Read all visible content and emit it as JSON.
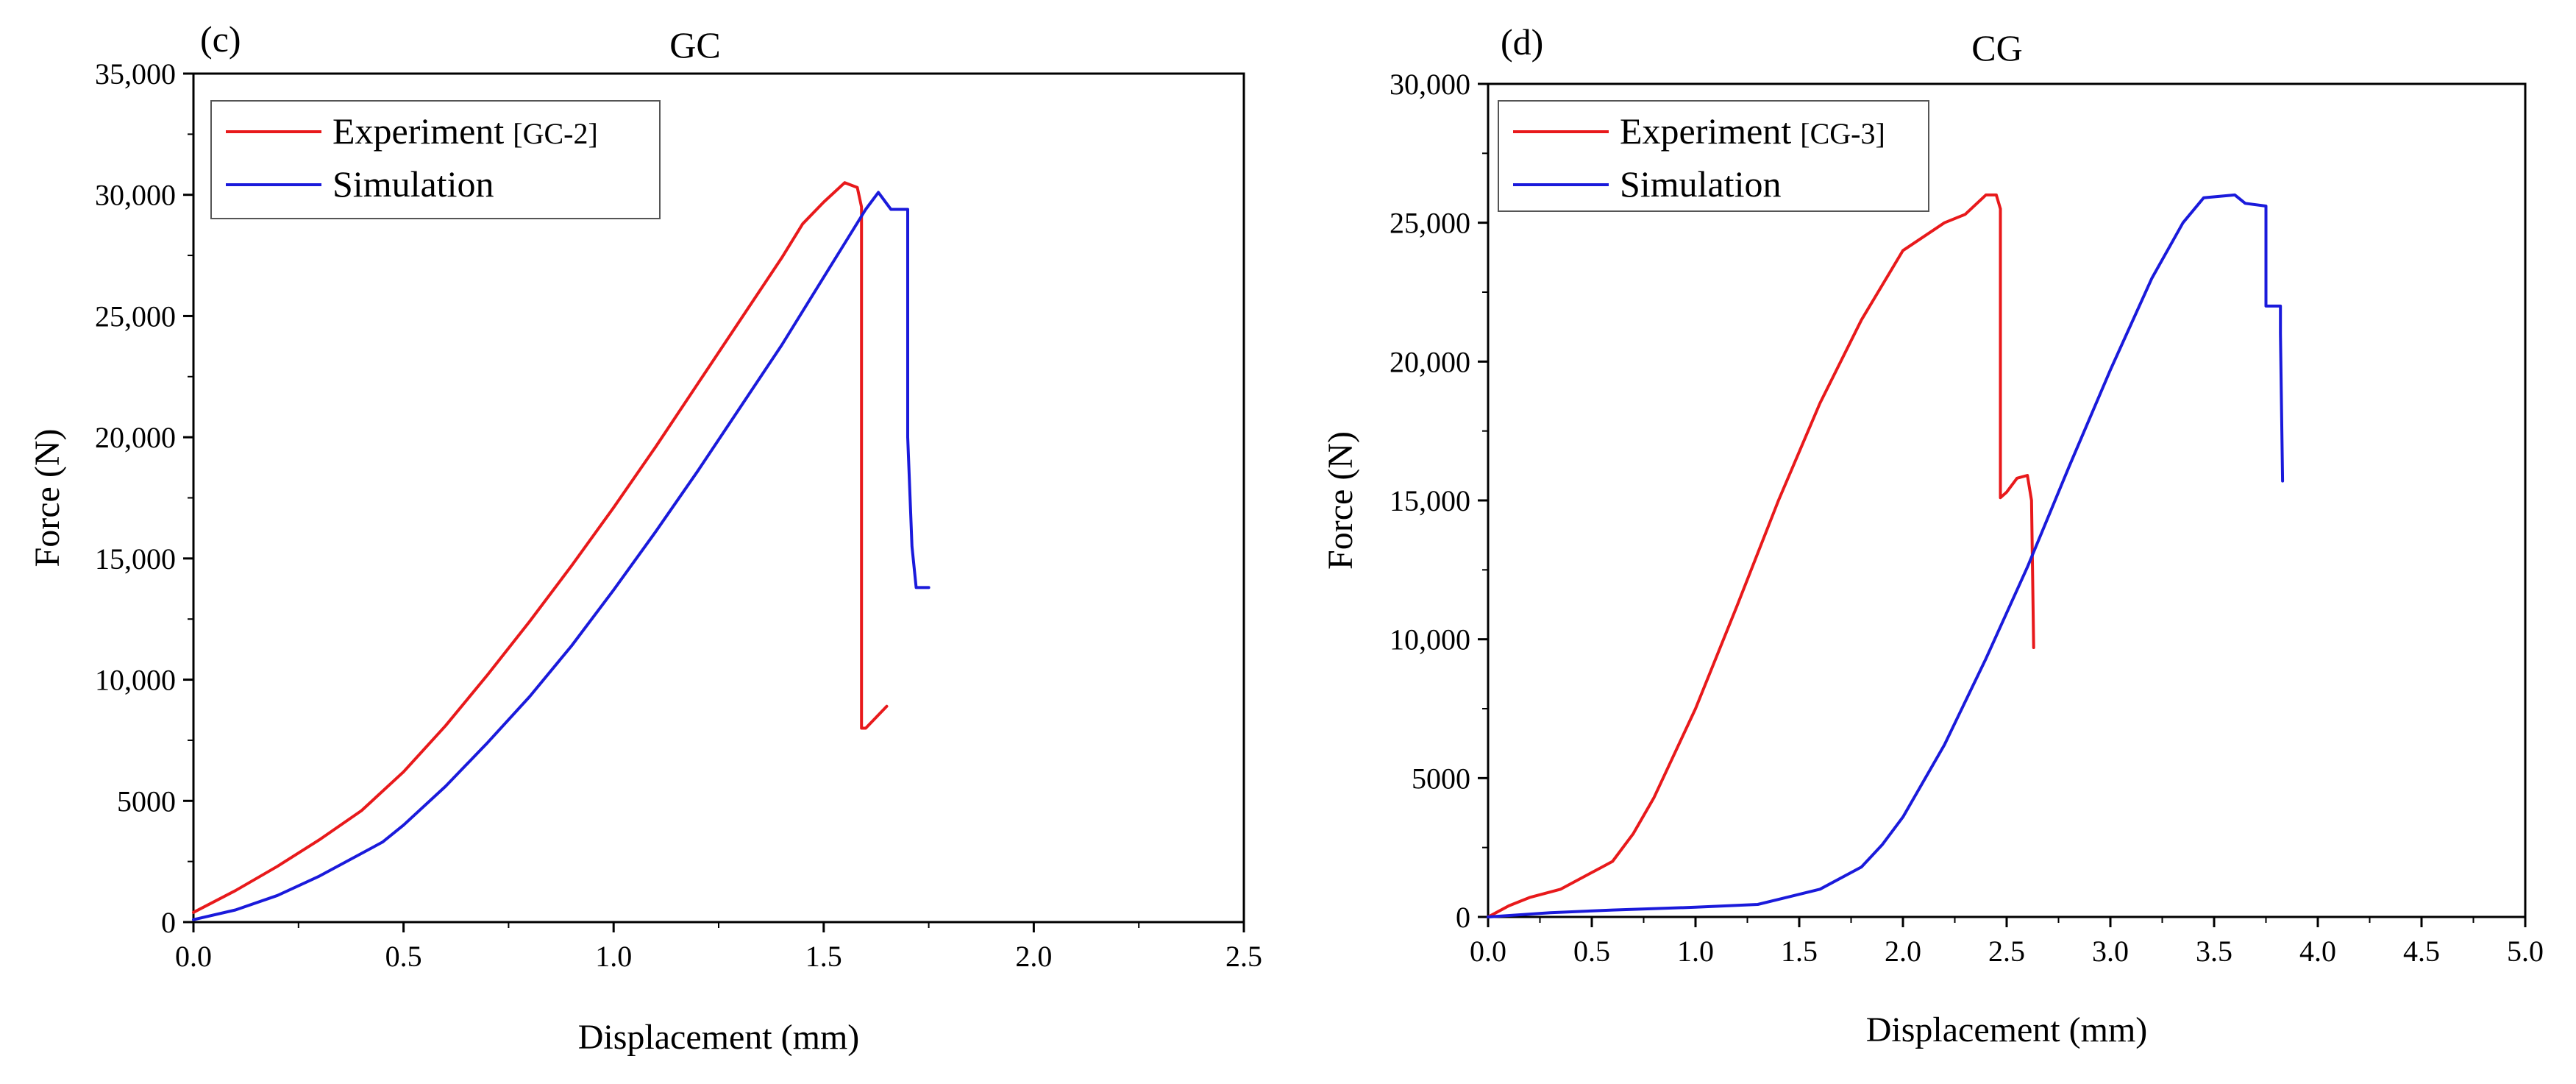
{
  "chart_data": [
    {
      "type": "line",
      "panel_label": "(c)",
      "title": "GC",
      "xlabel": "Displacement (mm)",
      "ylabel": "Force (N)",
      "xlim": [
        0,
        2.5
      ],
      "ylim": [
        0,
        35000
      ],
      "x_ticks": [
        0,
        0.5,
        1.0,
        1.5,
        2.0,
        2.5
      ],
      "x_tick_labels": [
        "0.0",
        "0.5",
        "1.0",
        "1.5",
        "2.0",
        "2.5"
      ],
      "y_ticks": [
        0,
        5000,
        10000,
        15000,
        20000,
        25000,
        30000,
        35000
      ],
      "y_tick_labels": [
        "0",
        "5000",
        "10,000",
        "15,000",
        "20,000",
        "25,000",
        "30,000",
        "35,000"
      ],
      "legend_position": "top-left",
      "series": [
        {
          "name": "Experiment",
          "name_tag": "[GC-2]",
          "color": "#e8191b",
          "x": [
            0.0,
            0.1,
            0.2,
            0.3,
            0.4,
            0.5,
            0.6,
            0.7,
            0.8,
            0.9,
            1.0,
            1.1,
            1.2,
            1.3,
            1.4,
            1.45,
            1.5,
            1.55,
            1.58,
            1.59,
            1.59,
            1.6,
            1.65
          ],
          "y": [
            400,
            1300,
            2300,
            3400,
            4600,
            6200,
            8100,
            10200,
            12400,
            14700,
            17100,
            19600,
            22200,
            24800,
            27400,
            28800,
            29700,
            30500,
            30300,
            29500,
            8000,
            8000,
            8900
          ]
        },
        {
          "name": "Simulation",
          "name_tag": "",
          "color": "#1a1adb",
          "x": [
            0.0,
            0.1,
            0.2,
            0.3,
            0.45,
            0.5,
            0.6,
            0.7,
            0.8,
            0.9,
            1.0,
            1.1,
            1.2,
            1.3,
            1.4,
            1.5,
            1.6,
            1.63,
            1.66,
            1.7,
            1.7,
            1.71,
            1.72,
            1.75
          ],
          "y": [
            100,
            500,
            1100,
            1900,
            3300,
            4000,
            5600,
            7400,
            9300,
            11400,
            13700,
            16100,
            18600,
            21200,
            23800,
            26600,
            29400,
            30100,
            29400,
            29400,
            20000,
            15500,
            13800,
            13800
          ]
        }
      ]
    },
    {
      "type": "line",
      "panel_label": "(d)",
      "title": "CG",
      "xlabel": "Displacement (mm)",
      "ylabel": "Force (N)",
      "xlim": [
        0,
        5.0
      ],
      "ylim": [
        0,
        30000
      ],
      "x_ticks": [
        0,
        0.5,
        1.0,
        1.5,
        2.0,
        2.5,
        3.0,
        3.5,
        4.0,
        4.5,
        5.0
      ],
      "x_tick_labels": [
        "0.0",
        "0.5",
        "1.0",
        "1.5",
        "2.0",
        "2.5",
        "3.0",
        "3.5",
        "4.0",
        "4.5",
        "5.0"
      ],
      "y_ticks": [
        0,
        5000,
        10000,
        15000,
        20000,
        25000,
        30000
      ],
      "y_tick_labels": [
        "0",
        "5000",
        "10,000",
        "15,000",
        "20,000",
        "25,000",
        "30,000"
      ],
      "legend_position": "top-left",
      "series": [
        {
          "name": "Experiment",
          "name_tag": "[CG-3]",
          "color": "#e8191b",
          "x": [
            0.0,
            0.1,
            0.2,
            0.35,
            0.5,
            0.55,
            0.6,
            0.7,
            0.8,
            1.0,
            1.2,
            1.4,
            1.6,
            1.8,
            2.0,
            2.2,
            2.3,
            2.4,
            2.45,
            2.47,
            2.47,
            2.5,
            2.55,
            2.6,
            2.62,
            2.63
          ],
          "y": [
            0,
            400,
            700,
            1000,
            1600,
            1800,
            2000,
            3000,
            4300,
            7500,
            11200,
            15000,
            18500,
            21500,
            24000,
            25000,
            25300,
            26000,
            26000,
            25500,
            15100,
            15300,
            15800,
            15900,
            15000,
            9700
          ]
        },
        {
          "name": "Simulation",
          "name_tag": "",
          "color": "#1a1adb",
          "x": [
            0.0,
            0.3,
            0.6,
            1.0,
            1.3,
            1.6,
            1.8,
            1.9,
            2.0,
            2.2,
            2.4,
            2.6,
            2.8,
            3.0,
            3.2,
            3.35,
            3.45,
            3.6,
            3.65,
            3.65,
            3.75,
            3.75,
            3.82,
            3.82,
            3.83
          ],
          "y": [
            0,
            150,
            250,
            350,
            450,
            1000,
            1800,
            2600,
            3600,
            6200,
            9300,
            12600,
            16200,
            19700,
            23000,
            25000,
            25900,
            26000,
            25700,
            25700,
            25600,
            22000,
            22000,
            21000,
            15700
          ]
        }
      ]
    }
  ]
}
